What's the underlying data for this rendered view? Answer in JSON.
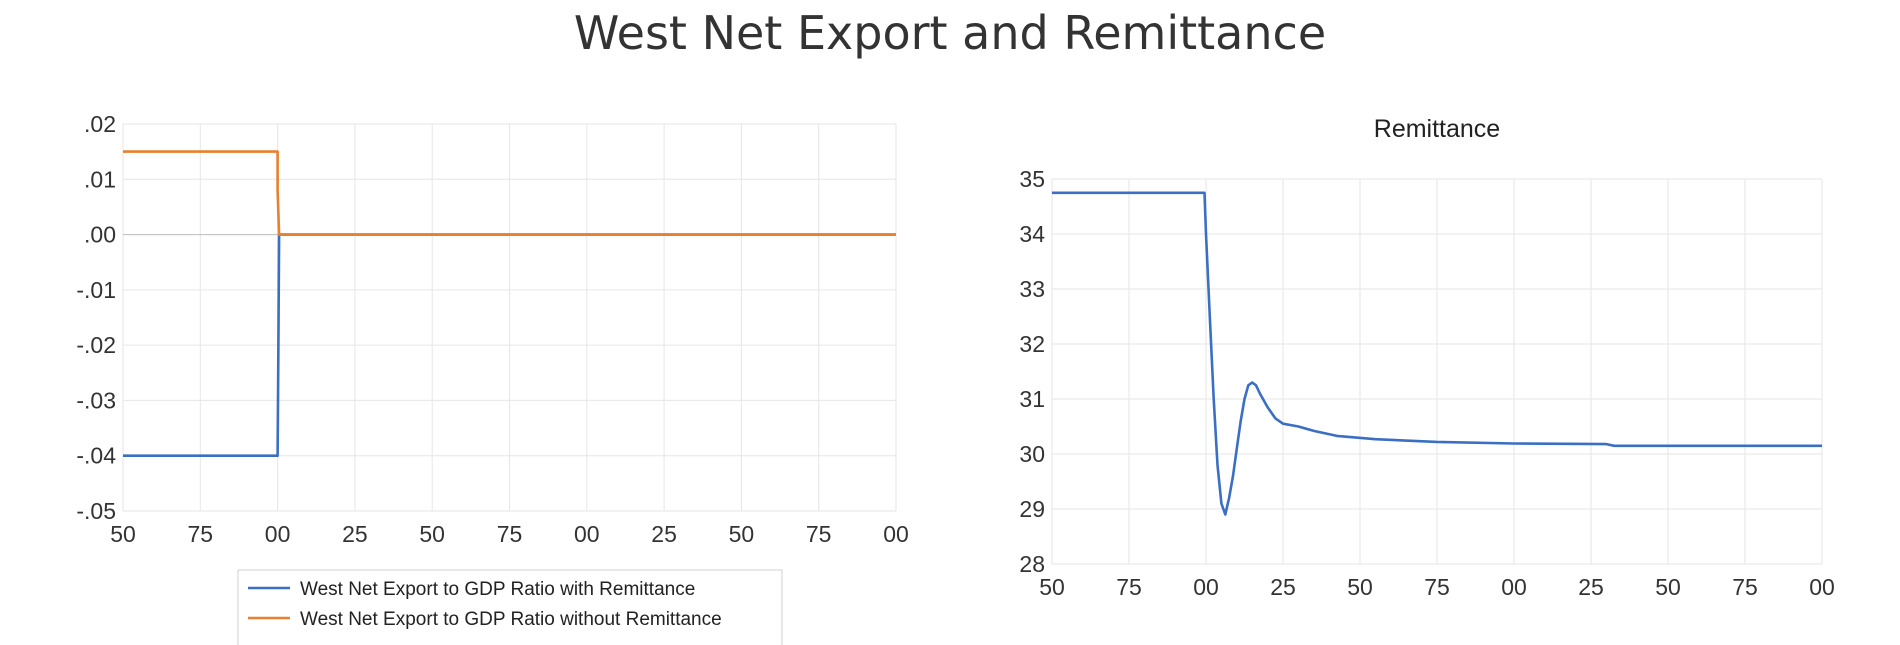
{
  "figure": {
    "title": "West Net Export and Remittance"
  },
  "chart_data": [
    {
      "type": "line",
      "title": "",
      "xlabel": "",
      "ylabel": "",
      "x_ticks": [
        "50",
        "75",
        "00",
        "25",
        "50",
        "75",
        "00",
        "25",
        "50",
        "75",
        "00"
      ],
      "y_ticks": [
        ".02",
        ".01",
        ".00",
        "-.01",
        "-.02",
        "-.03",
        "-.04",
        "-.05"
      ],
      "ylim": [
        -0.05,
        0.02
      ],
      "grid": true,
      "legend_placement": "bottom",
      "series": [
        {
          "name": "West Net Export to GDP Ratio with Remittance",
          "color": "#3a6fc4",
          "points": [
            [
              0,
              -0.04
            ],
            [
              2.0,
              -0.04
            ],
            [
              2.0,
              -0.04
            ],
            [
              2.01,
              -0.02
            ],
            [
              2.02,
              0.0
            ],
            [
              10.0,
              0.0
            ]
          ]
        },
        {
          "name": "West Net Export to GDP Ratio without Remittance",
          "color": "#e8802f",
          "points": [
            [
              0,
              0.015
            ],
            [
              2.0,
              0.015
            ],
            [
              2.0,
              0.008
            ],
            [
              2.02,
              0.0
            ],
            [
              10.0,
              0.0
            ]
          ]
        }
      ]
    },
    {
      "type": "line",
      "title": "Remittance",
      "xlabel": "",
      "ylabel": "",
      "x_ticks": [
        "50",
        "75",
        "00",
        "25",
        "50",
        "75",
        "00",
        "25",
        "50",
        "75",
        "00"
      ],
      "y_ticks": [
        "35",
        "34",
        "33",
        "32",
        "31",
        "30",
        "29",
        "28"
      ],
      "ylim": [
        28,
        35
      ],
      "grid": true,
      "series": [
        {
          "color": "#3a6fc4",
          "points": [
            [
              0,
              34.75
            ],
            [
              1.98,
              34.75
            ],
            [
              2.0,
              34.0
            ],
            [
              2.05,
              32.5
            ],
            [
              2.1,
              31.0
            ],
            [
              2.15,
              29.8
            ],
            [
              2.2,
              29.1
            ],
            [
              2.25,
              28.9
            ],
            [
              2.3,
              29.2
            ],
            [
              2.35,
              29.6
            ],
            [
              2.4,
              30.1
            ],
            [
              2.45,
              30.6
            ],
            [
              2.5,
              31.0
            ],
            [
              2.55,
              31.25
            ],
            [
              2.6,
              31.3
            ],
            [
              2.65,
              31.25
            ],
            [
              2.7,
              31.1
            ],
            [
              2.8,
              30.85
            ],
            [
              2.9,
              30.65
            ],
            [
              3.0,
              30.55
            ],
            [
              3.2,
              30.5
            ],
            [
              3.4,
              30.42
            ],
            [
              3.7,
              30.33
            ],
            [
              4.2,
              30.27
            ],
            [
              5.0,
              30.22
            ],
            [
              6.0,
              30.19
            ],
            [
              7.2,
              30.18
            ],
            [
              7.3,
              30.15
            ],
            [
              10.0,
              30.15
            ]
          ]
        }
      ]
    }
  ]
}
